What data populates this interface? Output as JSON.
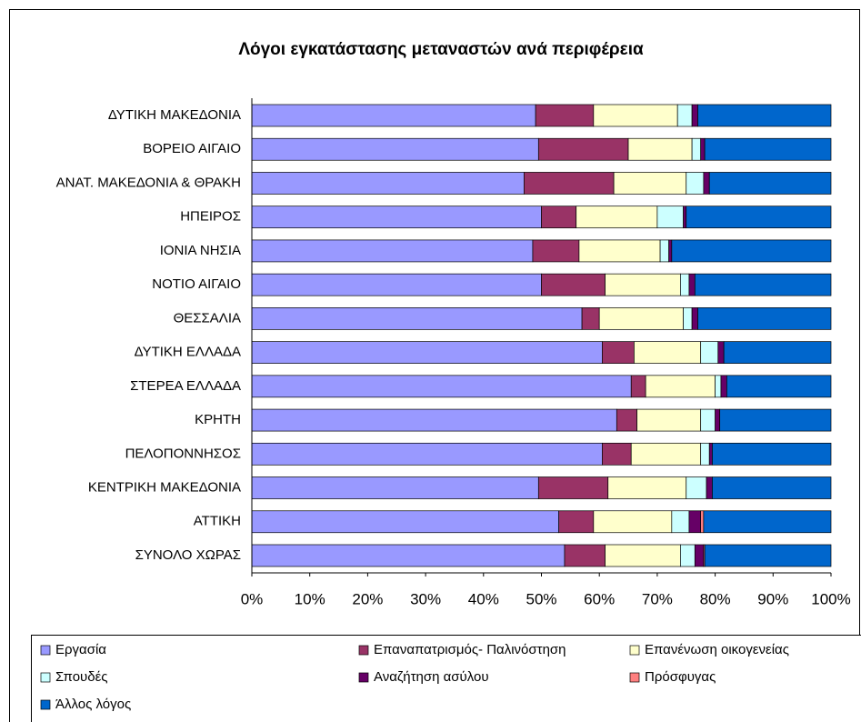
{
  "chart_data": {
    "type": "stacked-barh",
    "title": "Λόγοι εγκατάστασης μεταναστών ανά περιφέρεια",
    "categories": [
      "ΔΥΤΙΚΗ ΜΑΚΕΔΟΝΙΑ",
      "ΒΟΡΕΙΟ ΑΙΓΑΙΟ",
      "ΑΝΑΤ. ΜΑΚΕΔΟΝΙΑ & ΘΡΑΚΗ",
      "ΗΠΕΙΡΟΣ",
      "ΙΟΝΙΑ ΝΗΣΙΑ",
      "ΝΟΤΙΟ ΑΙΓΑΙΟ",
      "ΘΕΣΣΑΛΙΑ",
      "ΔΥΤΙΚΗ ΕΛΛΑΔΑ",
      "ΣΤΕΡΕΑ ΕΛΛΑΔΑ",
      "ΚΡΗΤΗ",
      "ΠΕΛΟΠΟΝΝΗΣΟΣ",
      "ΚΕΝΤΡΙΚΗ ΜΑΚΕΔΟΝΙΑ",
      "ΑΤΤΙΚΗ",
      "ΣΥΝΟΛΟ ΧΩΡΑΣ"
    ],
    "series": [
      {
        "name": "Εργασία",
        "color": "#9999ff",
        "values": [
          49,
          49.5,
          47,
          50,
          48.5,
          50,
          57,
          60.5,
          65.5,
          63,
          60.5,
          49.5,
          53,
          54
        ]
      },
      {
        "name": "Επαναπατρισμός- Παλινόστηση",
        "color": "#993366",
        "values": [
          10,
          15.5,
          15.5,
          6,
          8,
          11,
          3,
          5.5,
          2.5,
          3.5,
          5,
          12,
          6,
          7
        ]
      },
      {
        "name": "Επανένωση οικογενείας",
        "color": "#ffffcc",
        "values": [
          14.5,
          11,
          12.5,
          14,
          14,
          13,
          14.5,
          11.5,
          12,
          11,
          12,
          13.5,
          13.5,
          13
        ]
      },
      {
        "name": "Σπουδές",
        "color": "#ccffff",
        "values": [
          2.5,
          1.5,
          3,
          4.5,
          1.5,
          1.5,
          1.5,
          3,
          1,
          2.5,
          1.5,
          3.5,
          3,
          2.5
        ]
      },
      {
        "name": "Αναζήτηση ασύλου",
        "color": "#660066",
        "values": [
          1,
          0.7,
          1,
          0.5,
          0.5,
          1,
          1,
          1,
          1,
          0.8,
          0.5,
          1,
          2,
          1.5
        ]
      },
      {
        "name": "Πρόσφυγας",
        "color": "#ff8080",
        "values": [
          0,
          0,
          0,
          0,
          0,
          0,
          0,
          0,
          0,
          0,
          0,
          0,
          0.5,
          0.2
        ]
      },
      {
        "name": "Άλλος λόγος",
        "color": "#0066cc",
        "values": [
          23,
          21.8,
          21,
          25,
          27.5,
          23.5,
          23,
          18.5,
          18,
          19.2,
          20.5,
          20.5,
          22,
          21.8
        ]
      }
    ],
    "xlim": [
      0,
      100
    ],
    "xticks": [
      {
        "value": 0,
        "label": "0%"
      },
      {
        "value": 10,
        "label": "10%"
      },
      {
        "value": 20,
        "label": "20%"
      },
      {
        "value": 30,
        "label": "30%"
      },
      {
        "value": 40,
        "label": "40%"
      },
      {
        "value": 50,
        "label": "50%"
      },
      {
        "value": 60,
        "label": "60%"
      },
      {
        "value": 70,
        "label": "70%"
      },
      {
        "value": 80,
        "label": "80%"
      },
      {
        "value": 90,
        "label": "90%"
      },
      {
        "value": 100,
        "label": "100%"
      }
    ],
    "grid": false,
    "legend": "bottom"
  }
}
